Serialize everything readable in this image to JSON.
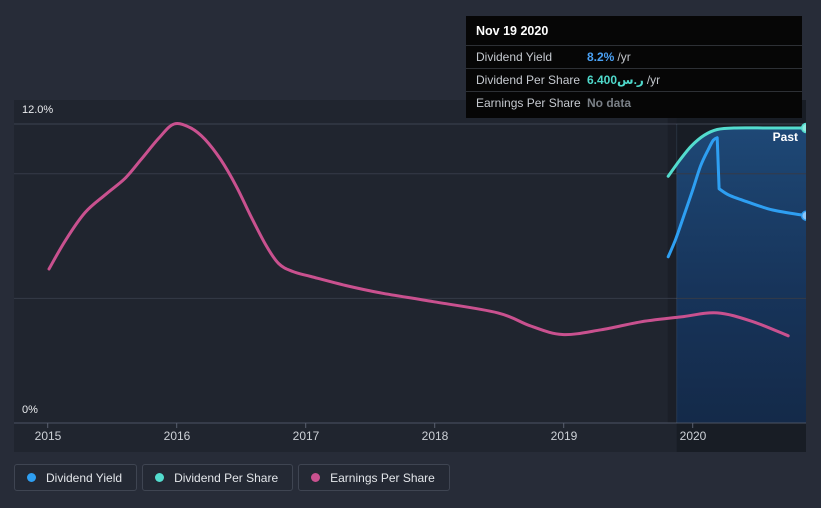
{
  "tooltip": {
    "date": "Nov 19 2020",
    "rows": [
      {
        "label": "Dividend Yield",
        "value": "8.2%",
        "unit": "/yr",
        "value_color": "#4AA1F4"
      },
      {
        "label": "Dividend Per Share",
        "value": "6.400ر.س",
        "unit": "/yr",
        "value_color": "#4FD9CB"
      },
      {
        "label": "Earnings Per Share",
        "value": "No data",
        "unit": "",
        "value_color": "#7A8087"
      }
    ]
  },
  "axis": {
    "y_top_label": "12.0%",
    "y_bottom_label": "0%",
    "x_labels": [
      "2015",
      "2016",
      "2017",
      "2018",
      "2019",
      "2020"
    ]
  },
  "past_label": "Past",
  "legend": [
    {
      "label": "Dividend Yield",
      "color": "#2E9FF2"
    },
    {
      "label": "Dividend Per Share",
      "color": "#53DCCE"
    },
    {
      "label": "Earnings Per Share",
      "color": "#C9518F"
    }
  ],
  "colors": {
    "page_bg": "#272C38",
    "plot_bg": "#20252F",
    "past_fill_top": "#1E4876",
    "past_fill_bottom": "#142A49",
    "gridline": "#353B48",
    "axis_line": "#4D5464"
  },
  "chart_data": {
    "type": "line",
    "title": "Dividend yield history with past-year highlight (tooltip at Nov 19 2020)",
    "x_axis": {
      "ticks": [
        2015,
        2016,
        2017,
        2018,
        2019,
        2020
      ],
      "min": 2014.74,
      "max": 2020.88
    },
    "y_axis": {
      "min": 0,
      "max": 12,
      "unit": "%",
      "gridlines": [
        0,
        5,
        10,
        12
      ],
      "top_label": "12.0%",
      "bottom_label": "0%"
    },
    "past_region": {
      "start_year": 2019.876,
      "end_year": 2020.88,
      "label": "Past"
    },
    "series": [
      {
        "name": "Earnings Per Share",
        "color": "#C9518F",
        "end_dot": false,
        "area_fill": false,
        "points": [
          [
            2015.01,
            6.18
          ],
          [
            2015.14,
            7.35
          ],
          [
            2015.29,
            8.45
          ],
          [
            2015.45,
            9.18
          ],
          [
            2015.6,
            9.82
          ],
          [
            2015.72,
            10.55
          ],
          [
            2015.86,
            11.42
          ],
          [
            2015.98,
            12.0
          ],
          [
            2016.11,
            11.84
          ],
          [
            2016.22,
            11.38
          ],
          [
            2016.34,
            10.58
          ],
          [
            2016.46,
            9.52
          ],
          [
            2016.57,
            8.35
          ],
          [
            2016.69,
            7.15
          ],
          [
            2016.79,
            6.4
          ],
          [
            2016.9,
            6.08
          ],
          [
            2017.04,
            5.88
          ],
          [
            2017.31,
            5.52
          ],
          [
            2017.58,
            5.22
          ],
          [
            2017.99,
            4.87
          ],
          [
            2018.49,
            4.42
          ],
          [
            2018.74,
            3.9
          ],
          [
            2018.99,
            3.55
          ],
          [
            2019.29,
            3.74
          ],
          [
            2019.6,
            4.06
          ],
          [
            2019.91,
            4.26
          ],
          [
            2020.19,
            4.42
          ],
          [
            2020.47,
            4.06
          ],
          [
            2020.74,
            3.5
          ]
        ]
      },
      {
        "name": "Dividend Per Share",
        "color": "#53DCCE",
        "end_dot": true,
        "dot_fill": "#8FE9E0",
        "area_fill": true,
        "points": [
          [
            2019.81,
            9.9
          ],
          [
            2019.9,
            10.55
          ],
          [
            2019.99,
            11.12
          ],
          [
            2020.09,
            11.55
          ],
          [
            2020.19,
            11.78
          ],
          [
            2020.32,
            11.84
          ],
          [
            2020.6,
            11.84
          ],
          [
            2020.88,
            11.84
          ]
        ]
      },
      {
        "name": "Dividend Yield",
        "color": "#2E9FF2",
        "end_dot": true,
        "dot_fill": "#8CC6F8",
        "area_fill": false,
        "points": [
          [
            2019.81,
            6.67
          ],
          [
            2019.87,
            7.4
          ],
          [
            2019.94,
            8.45
          ],
          [
            2020.0,
            9.35
          ],
          [
            2020.06,
            10.3
          ],
          [
            2020.12,
            10.97
          ],
          [
            2020.16,
            11.35
          ],
          [
            2020.19,
            11.45
          ],
          [
            2020.205,
            9.4
          ],
          [
            2020.28,
            9.15
          ],
          [
            2020.42,
            8.88
          ],
          [
            2020.62,
            8.55
          ],
          [
            2020.88,
            8.32
          ]
        ]
      }
    ]
  }
}
